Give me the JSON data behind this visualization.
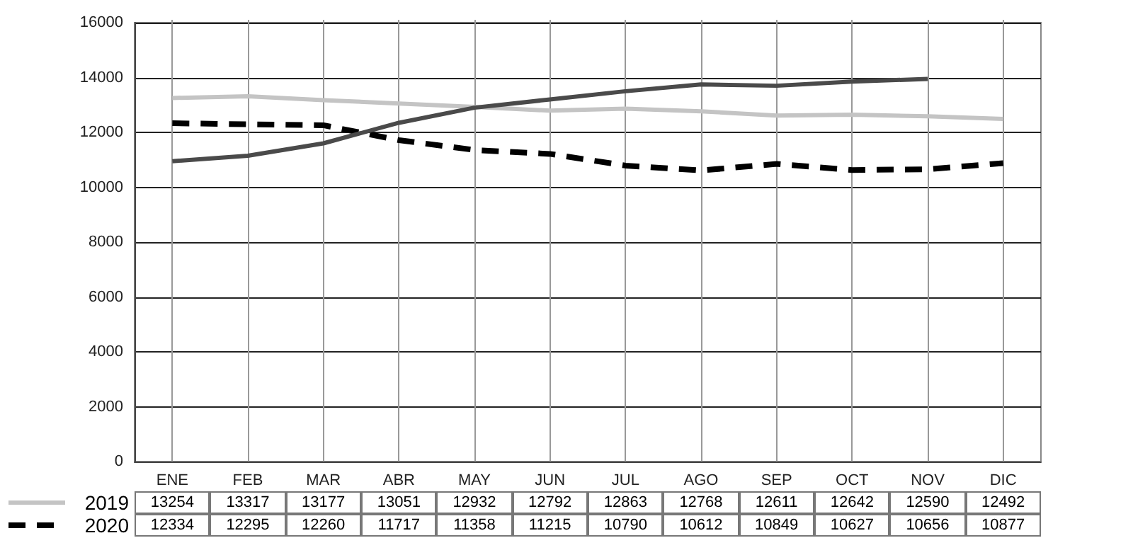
{
  "chart_data": {
    "type": "line",
    "categories": [
      "ENE",
      "FEB",
      "MAR",
      "ABR",
      "MAY",
      "JUN",
      "JUL",
      "AGO",
      "SEP",
      "OCT",
      "NOV",
      "DIC"
    ],
    "series": [
      {
        "name": "2019",
        "color": "#c4c4c4",
        "line_style": "solid",
        "values": [
          13254,
          13317,
          13177,
          13051,
          12932,
          12792,
          12863,
          12768,
          12611,
          12642,
          12590,
          12492
        ],
        "value_labels": [
          "13254",
          "13317",
          "13177",
          "13051",
          "12932",
          "12792",
          "12863",
          "12768",
          "12611",
          "12642",
          "12590",
          "12492"
        ]
      },
      {
        "name": "2020",
        "color": "#000000",
        "line_style": "dashed",
        "values": [
          12334,
          12295,
          12260,
          11717,
          11358,
          11215,
          10790,
          10612,
          10849,
          10627,
          10656,
          10877
        ],
        "value_labels": [
          "12334",
          "12295",
          "12260",
          "11717",
          "11358",
          "11215",
          "10790",
          "10612",
          "10849",
          "10627",
          "10656",
          "10877"
        ]
      },
      {
        "color": "#4a4a4a",
        "line_style": "solid",
        "values": [
          10950,
          11150,
          11600,
          12350,
          12900,
          13200,
          13500,
          13750,
          13700,
          13850,
          13950,
          null
        ]
      }
    ],
    "ylim": [
      0,
      16000
    ],
    "yticks": [
      0,
      2000,
      4000,
      6000,
      8000,
      10000,
      12000,
      14000,
      16000
    ],
    "grid": true,
    "marker": "none",
    "legend": "bottom left"
  }
}
